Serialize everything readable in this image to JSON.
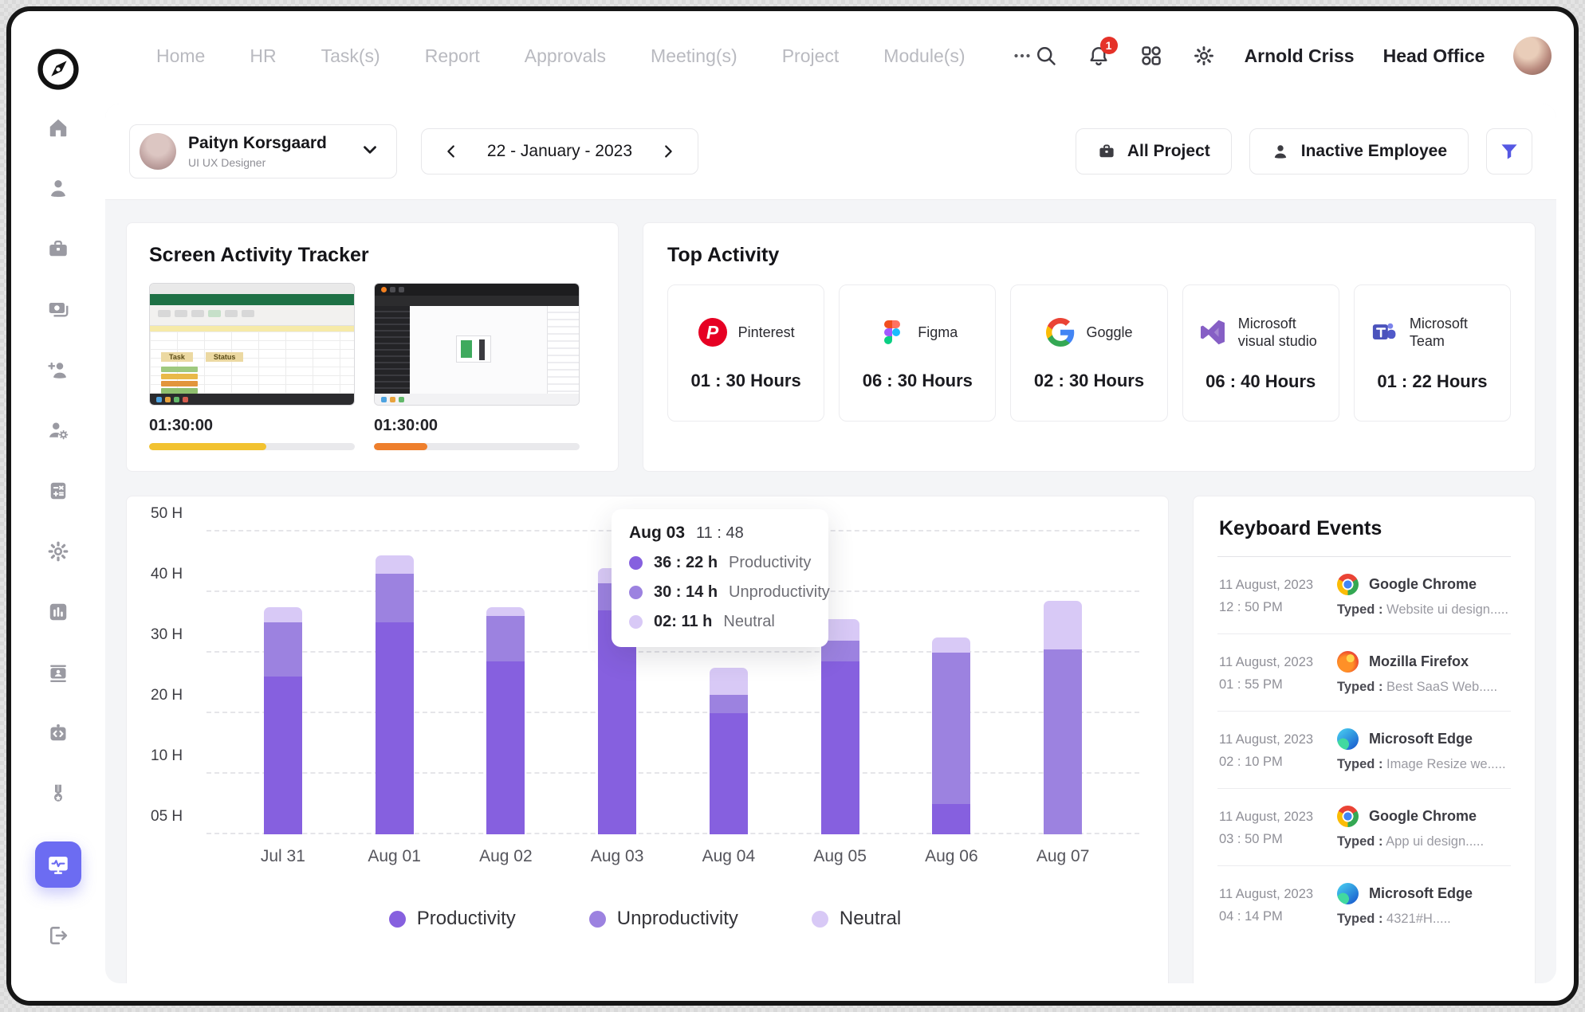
{
  "header": {
    "user_name": "Arnold Criss",
    "office_label": "Head Office",
    "notification_count": "1"
  },
  "nav": {
    "items": [
      "Home",
      "HR",
      "Task(s)",
      "Report",
      "Approvals",
      "Meeting(s)",
      "Project",
      "Module(s)"
    ]
  },
  "sidebar": {
    "items": [
      "home",
      "employee",
      "briefcase",
      "payments",
      "add-employee",
      "employee-settings",
      "calculator",
      "settings",
      "reports",
      "id-card",
      "dev-code",
      "rewards",
      "activity-tracker",
      "logout"
    ],
    "active_item": "activity-tracker"
  },
  "toolbar": {
    "employee_name": "Paityn Korsgaard",
    "employee_role": "UI UX Designer",
    "date_label": "22 - January - 2023",
    "all_project_label": "All Project",
    "inactive_label": "Inactive Employee"
  },
  "screen_tracker": {
    "title": "Screen Activity Tracker",
    "shots": [
      {
        "kind": "excel",
        "time": "01:30:00",
        "progress": 57,
        "bar_color": "#f2c230"
      },
      {
        "kind": "figma",
        "time": "01:30:00",
        "progress": 26,
        "bar_color": "#ee7f2d"
      }
    ]
  },
  "top_activity": {
    "title": "Top Activity",
    "apps": [
      {
        "name": "Pinterest",
        "hours": "01 : 30 Hours",
        "icon": "pinterest"
      },
      {
        "name": "Figma",
        "hours": "06 : 30 Hours",
        "icon": "figma"
      },
      {
        "name": "Goggle",
        "hours": "02 : 30 Hours",
        "icon": "google"
      },
      {
        "name": "Microsoft visual studio",
        "hours": "06 : 40 Hours",
        "icon": "visualstudio"
      },
      {
        "name": "Microsoft Team",
        "hours": "01 : 22 Hours",
        "icon": "teams"
      }
    ]
  },
  "chart_data": {
    "type": "bar",
    "stacked": true,
    "categories": [
      "Jul 31",
      "Aug 01",
      "Aug 02",
      "Aug 03",
      "Aug 04",
      "Aug 05",
      "Aug 06",
      "Aug 07"
    ],
    "series": [
      {
        "name": "Productivity",
        "color": "#8660df",
        "stack_top": [
          26,
          35,
          28.5,
          37,
          20,
          28.5,
          7.5,
          5
        ]
      },
      {
        "name": "Unproductivity",
        "color": "#9c82e0",
        "stack_top": [
          35,
          43,
          36,
          41.5,
          23,
          32,
          30,
          30.5
        ]
      },
      {
        "name": "Neutral",
        "color": "#d8c9f6",
        "stack_top": [
          37.5,
          46,
          37.5,
          44,
          27.5,
          35.5,
          32.5,
          38.5
        ]
      }
    ],
    "y_ticks": [
      "05 H",
      "10 H",
      "20 H",
      "30 H",
      "40 H",
      "50 H"
    ],
    "y_tick_values": [
      5,
      10,
      20,
      30,
      40,
      50
    ],
    "baseline": 5,
    "grid": "dashed horizontal",
    "legend_position": "bottom",
    "note": "stack_top values are cumulative tops in axis units; y ticks are equally spaced"
  },
  "chart_tooltip": {
    "date": "Aug 03",
    "time": "11 : 48",
    "rows": [
      {
        "value": "36 : 22 h",
        "label": "Productivity",
        "color": "#8660df"
      },
      {
        "value": "30 : 14 h",
        "label": "Unproductivity",
        "color": "#9c82e0"
      },
      {
        "value": "02: 11 h",
        "label": "Neutral",
        "color": "#d8c9f6"
      }
    ]
  },
  "keyboard_events": {
    "title": "Keyboard Events",
    "events": [
      {
        "date": "11 August, 2023",
        "time": "12 : 50 PM",
        "app": "Google Chrome",
        "icon": "chrome",
        "typed_label": "Typed :",
        "typed": "Website ui design....."
      },
      {
        "date": "11 August, 2023",
        "time": "01 : 55 PM",
        "app": "Mozilla Firefox",
        "icon": "firefox",
        "typed_label": "Typed :",
        "typed": "Best SaaS Web....."
      },
      {
        "date": "11 August, 2023",
        "time": "02 : 10 PM",
        "app": "Microsoft Edge",
        "icon": "edge",
        "typed_label": "Typed :",
        "typed": "Image Resize we....."
      },
      {
        "date": "11 August, 2023",
        "time": "03 : 50 PM",
        "app": "Google Chrome",
        "icon": "chrome",
        "typed_label": "Typed :",
        "typed": "App ui design....."
      },
      {
        "date": "11 August, 2023",
        "time": "04 : 14 PM",
        "app": "Microsoft Edge",
        "icon": "edge",
        "typed_label": "Typed :",
        "typed": "4321#H....."
      }
    ]
  }
}
